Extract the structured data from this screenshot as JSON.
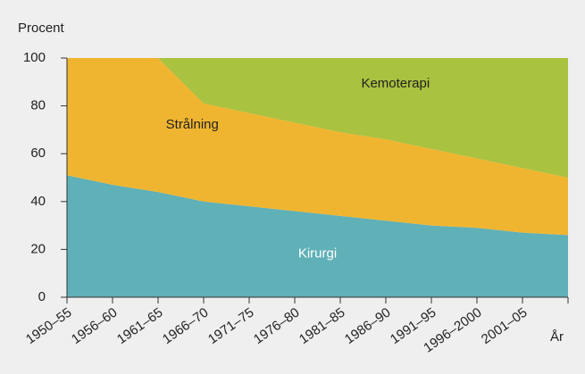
{
  "chart_data": {
    "type": "stacked_area",
    "y_label": "Procent",
    "x_label": "År",
    "categories": [
      "1950–55",
      "1956–60",
      "1961–65",
      "1966–70",
      "1971–75",
      "1976–80",
      "1981–85",
      "1986–90",
      "1991–95",
      "1996–2000",
      "2001–05",
      null
    ],
    "series": [
      {
        "name": "Kirurgi",
        "color": "#5fb0b7",
        "values": [
          51,
          47,
          44,
          40,
          38,
          36,
          34,
          32,
          30,
          29,
          27,
          26
        ]
      },
      {
        "name": "Strålning",
        "color": "#f0b530",
        "values": [
          49,
          53,
          56,
          41,
          39,
          37,
          35,
          34,
          32,
          29,
          27,
          24
        ]
      },
      {
        "name": "Kemoterapi",
        "color": "#a9c23f",
        "values": [
          0,
          0,
          0,
          19,
          23,
          27,
          31,
          34,
          38,
          42,
          46,
          50
        ]
      }
    ],
    "ylim": [
      0,
      100
    ],
    "yticks": [
      0,
      20,
      40,
      60,
      80,
      100
    ]
  }
}
